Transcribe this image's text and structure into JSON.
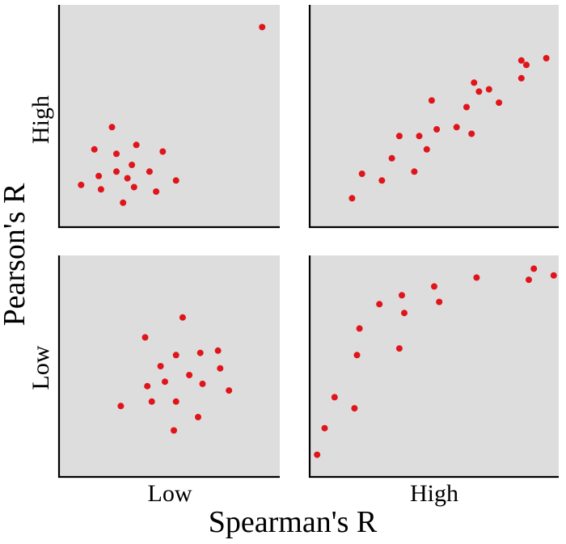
{
  "colors": {
    "panel_background": "#dddddd",
    "point": "#e0151b",
    "axis": "#000000"
  },
  "chart_data": {
    "type": "scatter",
    "description_layout": "2x2 grid of scatter panels",
    "xlabel": "Spearman's R",
    "ylabel": "Pearson's R",
    "column_labels": [
      "Low",
      "High"
    ],
    "row_labels": [
      "High",
      "Low"
    ],
    "grid": false,
    "panels": [
      {
        "id": "pearson-high-spearman-low",
        "pearson": "High",
        "spearman": "Low",
        "xlim": [
          0,
          100
        ],
        "ylim": [
          0,
          100
        ],
        "x": [
          10,
          16,
          18,
          19,
          24,
          26,
          26,
          29,
          31,
          33,
          34,
          35,
          41,
          44,
          47,
          53,
          92
        ],
        "y": [
          19,
          35,
          23,
          17,
          45,
          25,
          33,
          11,
          22,
          28,
          18,
          37,
          25,
          16,
          34,
          21,
          90
        ]
      },
      {
        "id": "pearson-high-spearman-high",
        "pearson": "High",
        "spearman": "High",
        "xlim": [
          0,
          100
        ],
        "ylim": [
          0,
          100
        ],
        "x": [
          17,
          21,
          29,
          33,
          36,
          42,
          44,
          47,
          49,
          51,
          59,
          63,
          65,
          66,
          68,
          72,
          76,
          85,
          85,
          87,
          95
        ],
        "y": [
          13,
          24,
          21,
          31,
          41,
          25,
          41,
          35,
          57,
          44,
          45,
          54,
          42,
          65,
          61,
          62,
          56,
          67,
          75,
          73,
          76
        ]
      },
      {
        "id": "pearson-low-spearman-low",
        "pearson": "Low",
        "spearman": "Low",
        "xlim": [
          0,
          100
        ],
        "ylim": [
          0,
          100
        ],
        "x": [
          28,
          39,
          40,
          42,
          46,
          48,
          52,
          53,
          53,
          56,
          59,
          63,
          64,
          65,
          72,
          73,
          77
        ],
        "y": [
          32,
          63,
          41,
          34,
          50,
          43,
          21,
          34,
          55,
          72,
          46,
          27,
          56,
          42,
          57,
          49,
          39
        ]
      },
      {
        "id": "pearson-low-spearman-high",
        "pearson": "Low",
        "spearman": "High",
        "xlim": [
          0,
          100
        ],
        "ylim": [
          0,
          100
        ],
        "x": [
          3,
          6,
          10,
          18,
          19,
          20,
          28,
          36,
          37,
          38,
          50,
          52,
          67,
          88,
          90,
          98
        ],
        "y": [
          10,
          22,
          36,
          31,
          55,
          67,
          78,
          58,
          82,
          74,
          86,
          79,
          90,
          89,
          94,
          91
        ]
      }
    ]
  }
}
